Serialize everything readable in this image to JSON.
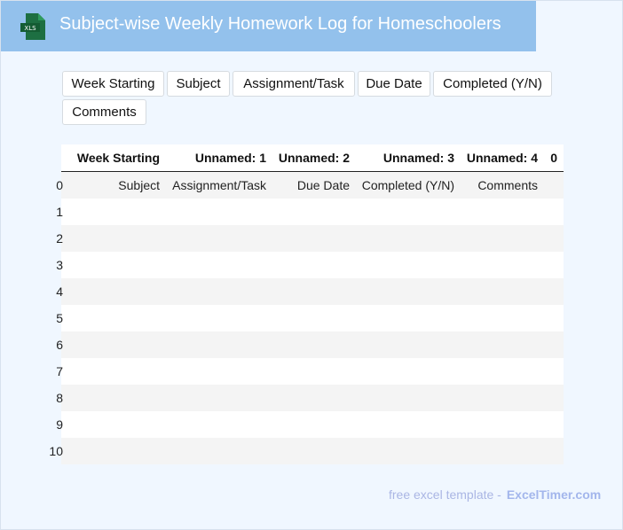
{
  "header": {
    "title": "Subject-wise Weekly Homework Log for Homeschoolers",
    "logo_text": "XLS",
    "logo_color": "#1d6f42"
  },
  "column_buttons": [
    "Week Starting",
    "Subject",
    "Assignment/Task",
    "Due Date",
    "Completed (Y/N)",
    "Comments"
  ],
  "table": {
    "header": [
      "",
      "Week Starting",
      "Unnamed: 1",
      "Unnamed: 2",
      "Unnamed: 3",
      "Unnamed: 4",
      "0"
    ],
    "rows": [
      [
        "0",
        "Subject",
        "Assignment/Task",
        "Due Date",
        "Completed (Y/N)",
        "Comments",
        ""
      ],
      [
        "1",
        "",
        "",
        "",
        "",
        "",
        ""
      ],
      [
        "2",
        "",
        "",
        "",
        "",
        "",
        ""
      ],
      [
        "3",
        "",
        "",
        "",
        "",
        "",
        ""
      ],
      [
        "4",
        "",
        "",
        "",
        "",
        "",
        ""
      ],
      [
        "5",
        "",
        "",
        "",
        "",
        "",
        ""
      ],
      [
        "6",
        "",
        "",
        "",
        "",
        "",
        ""
      ],
      [
        "7",
        "",
        "",
        "",
        "",
        "",
        ""
      ],
      [
        "8",
        "",
        "",
        "",
        "",
        "",
        ""
      ],
      [
        "9",
        "",
        "",
        "",
        "",
        "",
        ""
      ],
      [
        "10",
        "",
        "",
        "",
        "",
        "",
        ""
      ]
    ]
  },
  "footer": {
    "text": "free excel template -",
    "brand": "ExcelTimer.com"
  }
}
